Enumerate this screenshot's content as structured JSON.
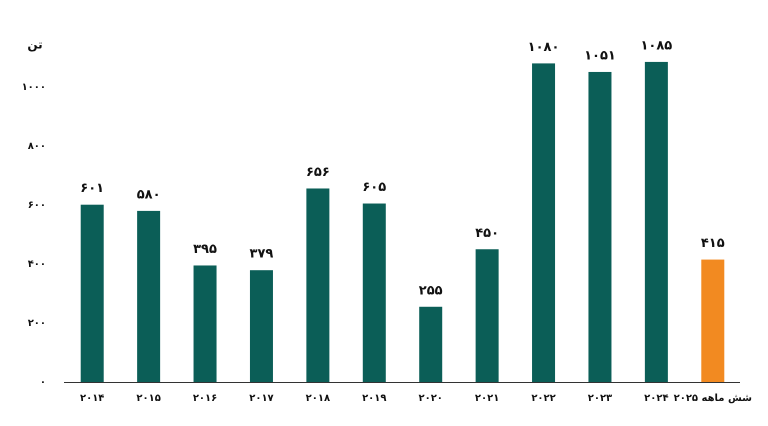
{
  "chart_data": {
    "type": "bar",
    "y_label": "تن",
    "categories": [
      "۲۰۱۴",
      "۲۰۱۵",
      "۲۰۱۶",
      "۲۰۱۷",
      "۲۰۱۸",
      "۲۰۱۹",
      "۲۰۲۰",
      "۲۰۲۱",
      "۲۰۲۲",
      "۲۰۲۳",
      "۲۰۲۴",
      "شش ماهه ۲۰۲۵"
    ],
    "values": [
      601,
      580,
      395,
      379,
      656,
      605,
      255,
      450,
      1080,
      1051,
      1085,
      415
    ],
    "value_labels": [
      "۶۰۱",
      "۵۸۰",
      "۳۹۵",
      "۳۷۹",
      "۶۵۶",
      "۶۰۵",
      "۲۵۵",
      "۴۵۰",
      "۱۰۸۰",
      "۱۰۵۱",
      "۱۰۸۵",
      "۴۱۵"
    ],
    "colors": [
      "#0b5e57",
      "#0b5e57",
      "#0b5e57",
      "#0b5e57",
      "#0b5e57",
      "#0b5e57",
      "#0b5e57",
      "#0b5e57",
      "#0b5e57",
      "#0b5e57",
      "#0b5e57",
      "#f28a21"
    ],
    "ylim": [
      0,
      1100
    ],
    "yticks": [
      {
        "value": 0,
        "label": "۰"
      },
      {
        "value": 200,
        "label": "۲۰۰"
      },
      {
        "value": 400,
        "label": "۴۰۰"
      },
      {
        "value": 600,
        "label": "۶۰۰"
      },
      {
        "value": 800,
        "label": "۸۰۰"
      },
      {
        "value": 1000,
        "label": "۱۰۰۰"
      }
    ],
    "grid": false
  }
}
